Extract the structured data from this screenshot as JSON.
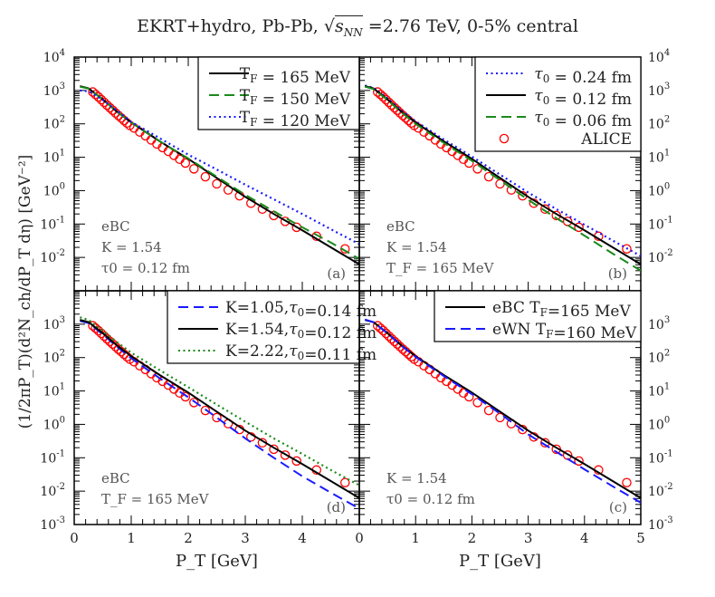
{
  "title": "EKRT+hydro, Pb-Pb, √s_NN =2.76 TeV, 0-5% central",
  "title_parts": {
    "pre": "EKRT+hydro, Pb-Pb, ",
    "sqrt": "s",
    "sub": "NN",
    "post": " =2.76 TeV, 0-5% central"
  },
  "ylabel": "(1/2πP_T)(d²N_ch/dP_T dη) [GeV⁻²]",
  "xlabel": "P_T [GeV]",
  "colors": {
    "black": "#000000",
    "green": "#1a8a1a",
    "blue": "#1a1aff",
    "red": "#ff0000",
    "annotation": "#555555"
  },
  "chart_data": [
    {
      "type": "line",
      "panel": "(a)",
      "position": "top-left",
      "xlim": [
        0,
        5
      ],
      "ylim": [
        0.001,
        10000
      ],
      "yscale": "log",
      "annotations": [
        "eBC",
        "K = 1.54",
        "τ0 = 0.12 fm"
      ],
      "legend": "top-right",
      "series": [
        {
          "name": "T_F = 165 MeV",
          "style": "solid",
          "color": "#000000",
          "x": [
            0.1,
            0.25,
            0.5,
            0.75,
            1,
            1.5,
            2,
            2.5,
            3,
            3.5,
            4,
            4.5,
            5
          ],
          "y": [
            1350,
            1150,
            540,
            230,
            110,
            30,
            9,
            2.4,
            0.65,
            0.2,
            0.065,
            0.02,
            0.0062
          ]
        },
        {
          "name": "T_F = 150 MeV",
          "style": "dashed",
          "color": "#1a8a1a",
          "x": [
            0.1,
            0.25,
            0.5,
            0.75,
            1,
            1.5,
            2,
            2.5,
            3,
            3.5,
            4,
            4.5,
            5
          ],
          "y": [
            1300,
            1130,
            540,
            230,
            110,
            30,
            9.2,
            2.6,
            0.75,
            0.24,
            0.08,
            0.028,
            0.009
          ]
        },
        {
          "name": "T_F = 120 MeV",
          "style": "dotted",
          "color": "#1a1aff",
          "x": [
            0.1,
            0.25,
            0.5,
            0.75,
            1,
            1.5,
            2,
            2.5,
            3,
            3.5,
            4,
            4.5,
            5
          ],
          "y": [
            1000,
            950,
            520,
            250,
            115,
            37,
            12,
            4.3,
            1.5,
            0.55,
            0.2,
            0.07,
            0.025
          ]
        }
      ]
    },
    {
      "type": "line",
      "panel": "(b)",
      "position": "top-right",
      "xlim": [
        0,
        5
      ],
      "ylim": [
        0.001,
        10000
      ],
      "yscale": "log",
      "annotations": [
        "eBC",
        "K = 1.54",
        "T_F = 165 MeV"
      ],
      "legend": "top-right",
      "series": [
        {
          "name": "τ0 = 0.24 fm",
          "style": "dotted",
          "color": "#1a1aff",
          "x": [
            0.1,
            0.25,
            0.5,
            0.75,
            1,
            1.5,
            2,
            2.5,
            3,
            3.5,
            4,
            4.5,
            5
          ],
          "y": [
            1400,
            1200,
            580,
            250,
            120,
            34,
            10.5,
            3,
            0.88,
            0.28,
            0.095,
            0.032,
            0.011
          ]
        },
        {
          "name": "τ0 = 0.12 fm",
          "style": "solid",
          "color": "#000000",
          "x": [
            0.1,
            0.25,
            0.5,
            0.75,
            1,
            1.5,
            2,
            2.5,
            3,
            3.5,
            4,
            4.5,
            5
          ],
          "y": [
            1350,
            1150,
            540,
            230,
            110,
            30,
            9,
            2.4,
            0.65,
            0.2,
            0.065,
            0.02,
            0.0062
          ]
        },
        {
          "name": "τ0 = 0.06 fm",
          "style": "dashed",
          "color": "#1a8a1a",
          "x": [
            0.1,
            0.25,
            0.5,
            0.75,
            1,
            1.5,
            2,
            2.5,
            3,
            3.5,
            4,
            4.5,
            5
          ],
          "y": [
            1300,
            1100,
            520,
            220,
            100,
            27,
            7.8,
            2.05,
            0.53,
            0.15,
            0.045,
            0.013,
            0.004
          ]
        },
        {
          "name": "ALICE",
          "style": "markers",
          "color": "#ff0000"
        }
      ]
    },
    {
      "type": "line",
      "panel": "(d)",
      "position": "bottom-left",
      "xlim": [
        0,
        5
      ],
      "ylim": [
        0.001,
        10000
      ],
      "yscale": "log",
      "annotations": [
        "eBC",
        "T_F = 165 MeV"
      ],
      "legend": "top-right",
      "series": [
        {
          "name": "K=1.05,τ0=0.14 fm",
          "style": "dashed",
          "color": "#1a1aff",
          "x": [
            0.1,
            0.25,
            0.5,
            0.75,
            1,
            1.5,
            2,
            2.5,
            3,
            3.5,
            4,
            4.5,
            5
          ],
          "y": [
            1250,
            1080,
            500,
            210,
            95,
            24,
            6.5,
            1.6,
            0.38,
            0.1,
            0.028,
            0.009,
            0.003
          ]
        },
        {
          "name": "K=1.54,τ0=0.12 fm",
          "style": "solid",
          "color": "#000000",
          "x": [
            0.1,
            0.25,
            0.5,
            0.75,
            1,
            1.5,
            2,
            2.5,
            3,
            3.5,
            4,
            4.5,
            5
          ],
          "y": [
            1350,
            1150,
            540,
            230,
            110,
            30,
            9,
            2.4,
            0.65,
            0.2,
            0.065,
            0.02,
            0.0062
          ]
        },
        {
          "name": "K=2.22,τ0=0.11 fm",
          "style": "dotted",
          "color": "#1a8a1a",
          "x": [
            0.1,
            0.25,
            0.5,
            0.75,
            1,
            1.5,
            2,
            2.5,
            3,
            3.5,
            4,
            4.5,
            5
          ],
          "y": [
            1600,
            1350,
            650,
            290,
            140,
            42,
            13,
            3.9,
            1.2,
            0.38,
            0.13,
            0.043,
            0.015
          ]
        }
      ]
    },
    {
      "type": "line",
      "panel": "(c)",
      "position": "bottom-right",
      "xlim": [
        0,
        5
      ],
      "ylim": [
        0.001,
        10000
      ],
      "yscale": "log",
      "annotations": [
        "K = 1.54",
        "τ0 = 0.12 fm"
      ],
      "legend": "top-right",
      "series": [
        {
          "name": "eBC T_F=165 MeV",
          "style": "solid",
          "color": "#000000",
          "x": [
            0.1,
            0.25,
            0.5,
            0.75,
            1,
            1.5,
            2,
            2.5,
            3,
            3.5,
            4,
            4.5,
            5
          ],
          "y": [
            1350,
            1150,
            540,
            230,
            110,
            30,
            9,
            2.4,
            0.65,
            0.2,
            0.065,
            0.02,
            0.0062
          ]
        },
        {
          "name": "eWN T_F=160 MeV",
          "style": "dashed",
          "color": "#1a1aff",
          "x": [
            0.1,
            0.25,
            0.5,
            0.75,
            1,
            1.5,
            2,
            2.5,
            3,
            3.5,
            4,
            4.5,
            5
          ],
          "y": [
            1380,
            1150,
            530,
            225,
            105,
            28,
            8,
            2.1,
            0.5,
            0.15,
            0.045,
            0.014,
            0.0045
          ]
        }
      ]
    }
  ],
  "alice": {
    "name": "ALICE",
    "x": [
      0.325,
      0.375,
      0.425,
      0.475,
      0.525,
      0.575,
      0.625,
      0.675,
      0.725,
      0.775,
      0.825,
      0.875,
      0.925,
      0.975,
      1.05,
      1.15,
      1.25,
      1.35,
      1.45,
      1.55,
      1.65,
      1.75,
      1.85,
      1.95,
      2.1,
      2.3,
      2.5,
      2.7,
      2.9,
      3.1,
      3.3,
      3.5,
      3.7,
      3.9,
      4.25,
      4.75
    ],
    "y": [
      900,
      760,
      640,
      530,
      440,
      365,
      305,
      255,
      212,
      178,
      150,
      126,
      106,
      90,
      75,
      57,
      44,
      33,
      25,
      19.5,
      15,
      11.4,
      8.7,
      6.7,
      4.5,
      2.6,
      1.6,
      1.05,
      0.7,
      0.42,
      0.28,
      0.18,
      0.12,
      0.08,
      0.043,
      0.018
    ]
  },
  "x_tick_labels": [
    "0",
    "1",
    "2",
    "3",
    "4",
    "5"
  ],
  "y_tick_exponents": [
    "-3",
    "-2",
    "-1",
    "0",
    "1",
    "2",
    "3",
    "4"
  ]
}
